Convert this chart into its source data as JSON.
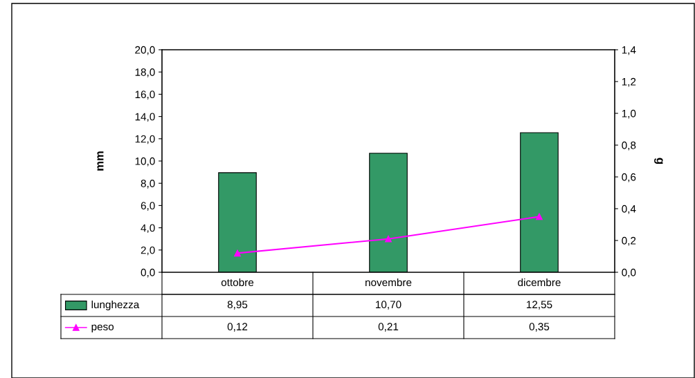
{
  "chart_data": {
    "type": "bar",
    "categories": [
      "ottobre",
      "novembre",
      "dicembre"
    ],
    "series": [
      {
        "name": "lunghezza",
        "color": "#339966",
        "values": [
          8.95,
          10.7,
          12.55
        ],
        "value_labels": [
          "8,95",
          "10,70",
          "12,55"
        ]
      },
      {
        "name": "peso",
        "type": "line",
        "axis": "y2",
        "color": "#ff00ff",
        "marker": "triangle",
        "values": [
          0.12,
          0.21,
          0.35
        ],
        "value_labels": [
          "0,12",
          "0,21",
          "0,35"
        ]
      }
    ],
    "ylabel": "mm",
    "y2label": "g",
    "ylim": [
      0,
      20
    ],
    "yticks": [
      {
        "value": 0,
        "label": "0,0"
      },
      {
        "value": 2,
        "label": "2,0"
      },
      {
        "value": 4,
        "label": "4,0"
      },
      {
        "value": 6,
        "label": "6,0"
      },
      {
        "value": 8,
        "label": "8,0"
      },
      {
        "value": 10,
        "label": "10,0"
      },
      {
        "value": 12,
        "label": "12,0"
      },
      {
        "value": 14,
        "label": "14,0"
      },
      {
        "value": 16,
        "label": "16,0"
      },
      {
        "value": 18,
        "label": "18,0"
      },
      {
        "value": 20,
        "label": "20,0"
      }
    ],
    "y2lim": [
      0,
      1.4
    ],
    "y2ticks": [
      {
        "value": 0,
        "label": "0,0"
      },
      {
        "value": 0.2,
        "label": "0,2"
      },
      {
        "value": 0.4,
        "label": "0,4"
      },
      {
        "value": 0.6,
        "label": "0,6"
      },
      {
        "value": 0.8,
        "label": "0,8"
      },
      {
        "value": 1.0,
        "label": "1,0"
      },
      {
        "value": 1.2,
        "label": "1,2"
      },
      {
        "value": 1.4,
        "label": "1,4"
      }
    ],
    "grid": false,
    "legend": "bottom"
  }
}
